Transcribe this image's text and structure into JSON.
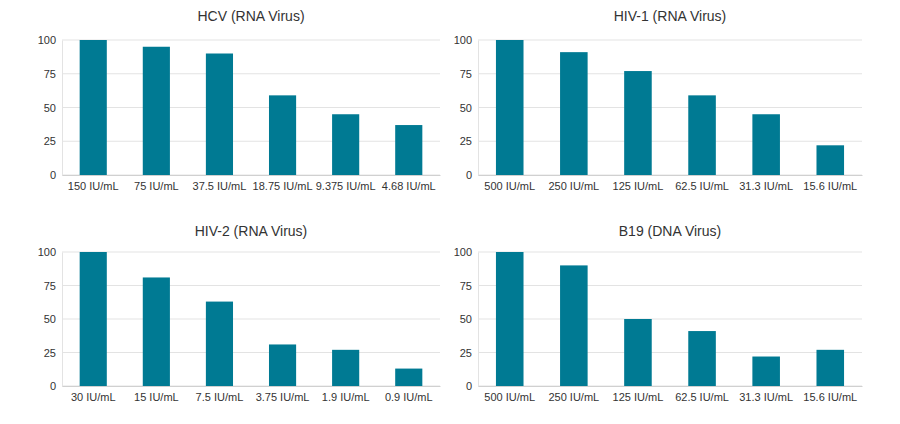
{
  "chart_data": [
    {
      "type": "bar",
      "title": "HCV (RNA Virus)",
      "categories": [
        "150 IU/mL",
        "75 IU/mL",
        "37.5 IU/mL",
        "18.75 IU/mL",
        "9.375 IU/mL",
        "4.68 IU/mL"
      ],
      "values": [
        100,
        95,
        90,
        59,
        45,
        37
      ],
      "color": "#007a93",
      "ylim": [
        0,
        100
      ],
      "yticks": [
        0,
        25,
        50,
        75,
        100
      ],
      "grid": true
    },
    {
      "type": "bar",
      "title": "HIV-1 (RNA Virus)",
      "categories": [
        "500 IU/mL",
        "250 IU/mL",
        "125 IU/mL",
        "62.5 IU/mL",
        "31.3 IU/mL",
        "15.6 IU/mL"
      ],
      "values": [
        100,
        91,
        77,
        59,
        45,
        22
      ],
      "color": "#007a93",
      "ylim": [
        0,
        100
      ],
      "yticks": [
        0,
        25,
        50,
        75,
        100
      ],
      "grid": true
    },
    {
      "type": "bar",
      "title": "HIV-2 (RNA Virus)",
      "categories": [
        "30 IU/mL",
        "15 IU/mL",
        "7.5 IU/mL",
        "3.75 IU/mL",
        "1.9 IU/mL",
        "0.9 IU/mL"
      ],
      "values": [
        100,
        81,
        63,
        31,
        27,
        13
      ],
      "color": "#007a93",
      "ylim": [
        0,
        100
      ],
      "yticks": [
        0,
        25,
        50,
        75,
        100
      ],
      "grid": true
    },
    {
      "type": "bar",
      "title": "B19 (DNA Virus)",
      "categories": [
        "500 IU/mL",
        "250 IU/mL",
        "125 IU/mL",
        "62.5 IU/mL",
        "31.3 IU/mL",
        "15.6 IU/mL"
      ],
      "values": [
        100,
        90,
        50,
        41,
        22,
        27
      ],
      "color": "#007a93",
      "ylim": [
        0,
        100
      ],
      "yticks": [
        0,
        25,
        50,
        75,
        100
      ],
      "grid": true
    }
  ]
}
